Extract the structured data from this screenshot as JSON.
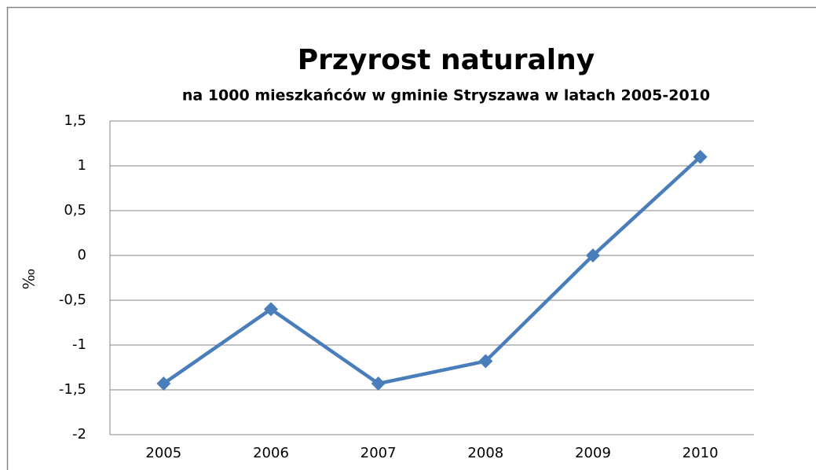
{
  "chart_data": {
    "type": "line",
    "title": "Przyrost naturalny",
    "subtitle": "na 1000 mieszkańców w gminie Stryszawa w latach 2005-2010",
    "y_label": "‰",
    "categories": [
      "2005",
      "2006",
      "2007",
      "2008",
      "2009",
      "2010"
    ],
    "series": [
      {
        "name": "Przyrost naturalny",
        "color": "#4a7ebb",
        "values": [
          -1.43,
          -0.6,
          -1.43,
          -1.18,
          0,
          1.1
        ]
      }
    ],
    "ylim": [
      -2,
      1.5
    ],
    "yticks": [
      {
        "value": 1.5,
        "label": "1,5"
      },
      1,
      {
        "value": 0.5,
        "label": "0,5"
      },
      0,
      {
        "value": -0.5,
        "label": "-0,5"
      },
      -1,
      {
        "value": -1.5,
        "label": "-1,5"
      },
      -2
    ],
    "grid": true
  }
}
